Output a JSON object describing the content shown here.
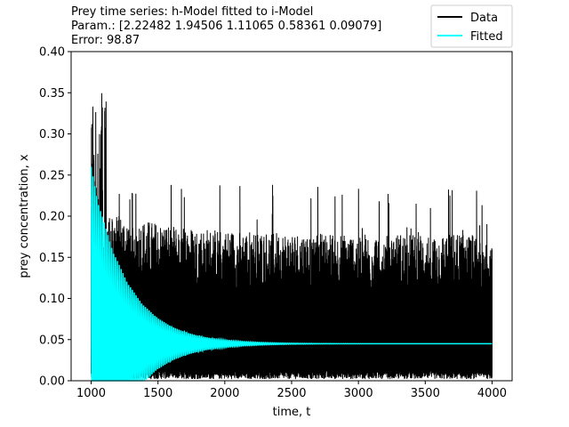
{
  "chart_data": {
    "type": "line",
    "title_lines": [
      "Prey time series: h-Model fitted to i-Model",
      "Param.: [2.22482 1.94506 1.11065 0.58361 0.09079]",
      "Error: 98.87"
    ],
    "xlabel": "time, t",
    "ylabel": "prey concentration, x",
    "xlim": [
      850,
      4150
    ],
    "ylim": [
      0.0,
      0.4
    ],
    "xticks": [
      1000,
      1500,
      2000,
      2500,
      3000,
      3500,
      4000
    ],
    "xtick_labels": [
      "1000",
      "1500",
      "2000",
      "2500",
      "3000",
      "3500",
      "4000"
    ],
    "yticks": [
      0.0,
      0.05,
      0.1,
      0.15,
      0.2,
      0.25,
      0.3,
      0.35,
      0.4
    ],
    "ytick_labels": [
      "0.00",
      "0.05",
      "0.10",
      "0.15",
      "0.20",
      "0.25",
      "0.30",
      "0.35",
      "0.40"
    ],
    "grid": false,
    "legend_position": "top-right",
    "series": [
      {
        "name": "Data",
        "color": "#000000",
        "x_range": [
          1000,
          4000
        ],
        "y_min": 0.0,
        "y_max": 0.355,
        "typical_peak": 0.15,
        "steady_state": 0.045
      },
      {
        "name": "Fitted",
        "color": "#00ffff",
        "x_range": [
          1000,
          4000
        ],
        "initial_peak": 0.26,
        "steady_state": 0.045,
        "pattern": "damped oscillation"
      }
    ]
  }
}
